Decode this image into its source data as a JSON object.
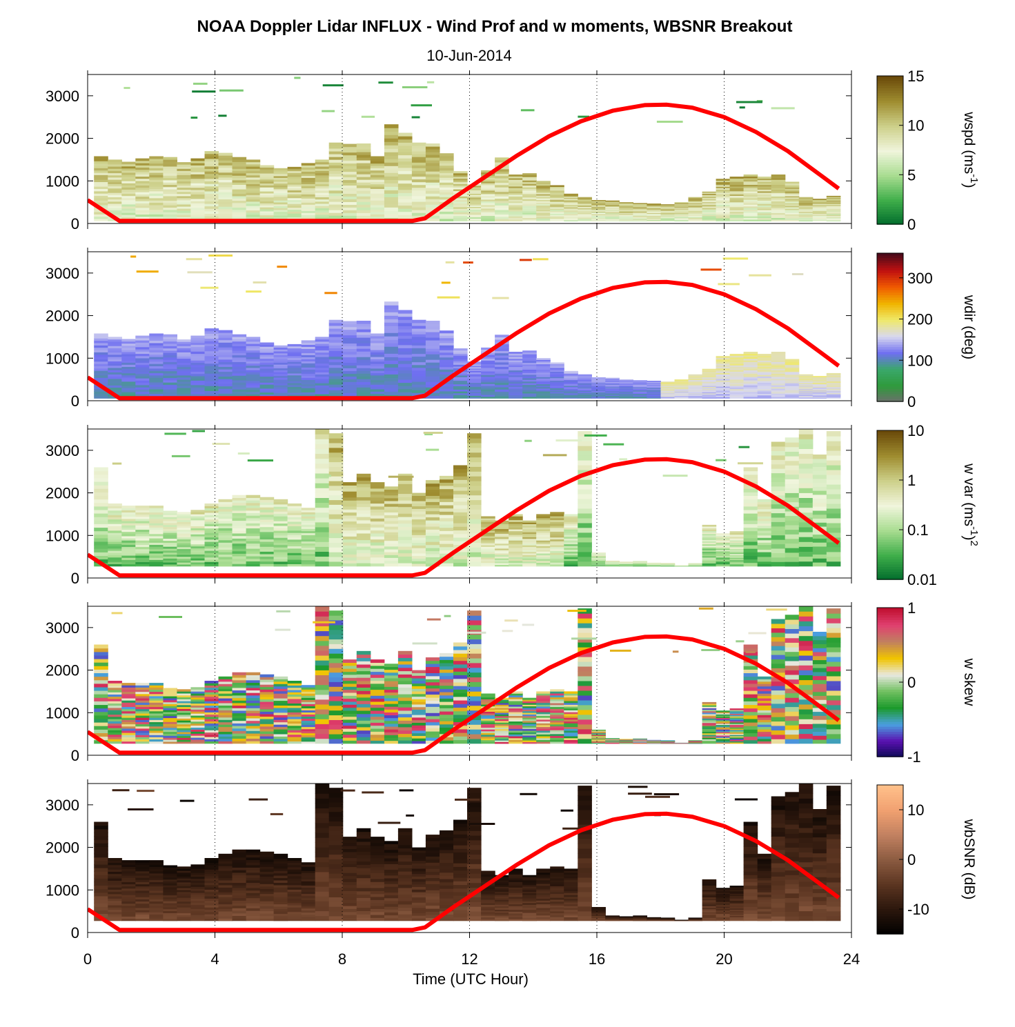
{
  "chart_data": {
    "type": "heatmap",
    "title": "NOAA Doppler Lidar INFLUX - Wind Prof and w moments, WBSNR Breakout",
    "subtitle": "10-Jun-2014",
    "xlabel": "Time (UTC Hour)",
    "xlim": [
      0,
      24
    ],
    "xticks": [
      0,
      4,
      8,
      12,
      16,
      20,
      24
    ],
    "ylim": [
      0,
      3500
    ],
    "yticks": [
      0,
      1000,
      2000,
      3000
    ],
    "grid": "vertical dotted lines at 4, 8, 12, 16, 20",
    "boundary_layer_curve": {
      "color": "#ff0000",
      "x": [
        0,
        1,
        10.2,
        10.6,
        11.5,
        12.5,
        13.5,
        14.5,
        15.5,
        16.5,
        17.5,
        18.2,
        19,
        20,
        21,
        22,
        23,
        23.6
      ],
      "y": [
        550,
        60,
        60,
        120,
        600,
        1100,
        1600,
        2050,
        2400,
        2650,
        2780,
        2790,
        2720,
        2500,
        2150,
        1700,
        1150,
        820
      ]
    },
    "panels": [
      {
        "id": "wspd",
        "colorbar_label": "wspd (ms",
        "colorbar_label_sup": "-1",
        "colorbar_label_end": ")",
        "colorbar_ticks": [
          "15",
          "10",
          "5",
          "0"
        ],
        "colorbar_range": [
          0,
          15
        ],
        "colormap": [
          "#006b2c",
          "#3fae4a",
          "#a8dc90",
          "#f0f5dc",
          "#cdd08a",
          "#9f8d30",
          "#6a4a0a"
        ],
        "column_tops": [
          1580,
          1500,
          1450,
          1530,
          1580,
          1560,
          1440,
          1530,
          1700,
          1660,
          1560,
          1500,
          1370,
          1300,
          1330,
          1420,
          1500,
          1900,
          1870,
          1880,
          1580,
          2330,
          2130,
          1900,
          1880,
          1650,
          1230,
          920,
          1250,
          1550,
          1150,
          1180,
          1000,
          900,
          700,
          620,
          550,
          540,
          500,
          480,
          470,
          450,
          500,
          620,
          750,
          1050,
          1100,
          1150,
          1100,
          1150,
          980,
          620,
          580,
          650
        ],
        "base_value": 7,
        "top_value": 11,
        "stray_value": 3
      },
      {
        "id": "wdir",
        "colorbar_label": "wdir (deg)",
        "colorbar_ticks": [
          "300",
          "200",
          "100",
          "0"
        ],
        "colorbar_range": [
          0,
          360
        ],
        "colormap": [
          "#6e6e6e",
          "#2f9a3c",
          "#3aa86a",
          "#6f6ff0",
          "#d8d8ef",
          "#efe96a",
          "#f0b400",
          "#f05a00",
          "#c01010",
          "#4a0a1a"
        ],
        "column_tops": [
          1580,
          1500,
          1450,
          1530,
          1580,
          1560,
          1440,
          1530,
          1700,
          1660,
          1560,
          1500,
          1370,
          1300,
          1330,
          1420,
          1500,
          1900,
          1870,
          1880,
          1580,
          2330,
          2130,
          1900,
          1880,
          1650,
          1230,
          920,
          1250,
          1550,
          1150,
          1180,
          1000,
          900,
          700,
          620,
          550,
          540,
          500,
          480,
          470,
          450,
          500,
          620,
          750,
          1050,
          1100,
          1150,
          1100,
          1150,
          980,
          620,
          580,
          650
        ],
        "base_value": 100,
        "top_value": 140,
        "stray_value": 230
      },
      {
        "id": "wvar",
        "colorbar_label": "w var (ms",
        "colorbar_label_sup": "-1",
        "colorbar_label_end": ")",
        "colorbar_label_sup2": "2",
        "colorbar_ticks": [
          "10",
          "1",
          "0.1",
          "0.01"
        ],
        "colorbar_range": [
          0.01,
          10
        ],
        "colormap": [
          "#006b2c",
          "#3fae4a",
          "#a8dc90",
          "#f0f5dc",
          "#cdd08a",
          "#9f8d30",
          "#6a4a0a"
        ],
        "column_tops": [
          2600,
          1750,
          1700,
          1700,
          1700,
          1580,
          1550,
          1600,
          1750,
          1850,
          1950,
          1950,
          1900,
          1850,
          1750,
          1650,
          3500,
          3400,
          2250,
          2450,
          2250,
          2150,
          2450,
          2000,
          2300,
          2400,
          2650,
          3400,
          1450,
          1350,
          1500,
          1350,
          1500,
          1550,
          1500,
          3450,
          600,
          400,
          380,
          400,
          360,
          350,
          300,
          350,
          1250,
          1050,
          1100,
          2600,
          1850,
          3200,
          3300,
          3500,
          2900,
          3450
        ],
        "base_value": 0.05,
        "top_value": 0.5,
        "stray_value": 0.02
      },
      {
        "id": "wskew",
        "colorbar_label": "w skew",
        "colorbar_ticks": [
          "1",
          "0",
          "-1"
        ],
        "colorbar_range": [
          -1,
          1
        ],
        "colormap": [
          "#0b0b55",
          "#5a10b0",
          "#4aa0e0",
          "#1c9a2c",
          "#70c060",
          "#e8e8e0",
          "#f0c400",
          "#c08060",
          "#e04070",
          "#c01030"
        ],
        "column_tops": [
          2600,
          1750,
          1700,
          1700,
          1700,
          1580,
          1550,
          1600,
          1750,
          1850,
          1950,
          1950,
          1900,
          1850,
          1750,
          1650,
          3500,
          3400,
          2250,
          2450,
          2250,
          2150,
          2450,
          2000,
          2300,
          2400,
          2650,
          3400,
          1450,
          1350,
          1500,
          1350,
          1500,
          1550,
          1500,
          3450,
          600,
          400,
          380,
          400,
          360,
          350,
          300,
          350,
          1250,
          1050,
          1100,
          2600,
          1850,
          3200,
          3300,
          3500,
          2900,
          3450
        ],
        "base_value": 0.1,
        "top_value": -0.1,
        "stray_value": 0.2
      },
      {
        "id": "wbsnr",
        "colorbar_label": "wbSNR (dB)",
        "colorbar_ticks": [
          "10",
          "0",
          "-10"
        ],
        "colorbar_range": [
          -15,
          15
        ],
        "colormap": [
          "#000000",
          "#2a160c",
          "#5a3420",
          "#8a5a40",
          "#c08060",
          "#f0a070",
          "#ffc08a"
        ],
        "column_tops": [
          2600,
          1750,
          1700,
          1700,
          1700,
          1580,
          1550,
          1600,
          1750,
          1850,
          1950,
          1950,
          1900,
          1850,
          1750,
          1650,
          3500,
          3400,
          2250,
          2450,
          2250,
          2150,
          2450,
          2000,
          2300,
          2400,
          2650,
          3400,
          1450,
          1350,
          1500,
          1350,
          1500,
          1550,
          1500,
          3450,
          600,
          400,
          380,
          400,
          360,
          350,
          300,
          350,
          1250,
          1050,
          1100,
          2600,
          1850,
          3200,
          3300,
          3500,
          2900,
          3450
        ],
        "base_value": -2,
        "top_value": -12,
        "stray_value": -8
      }
    ]
  }
}
